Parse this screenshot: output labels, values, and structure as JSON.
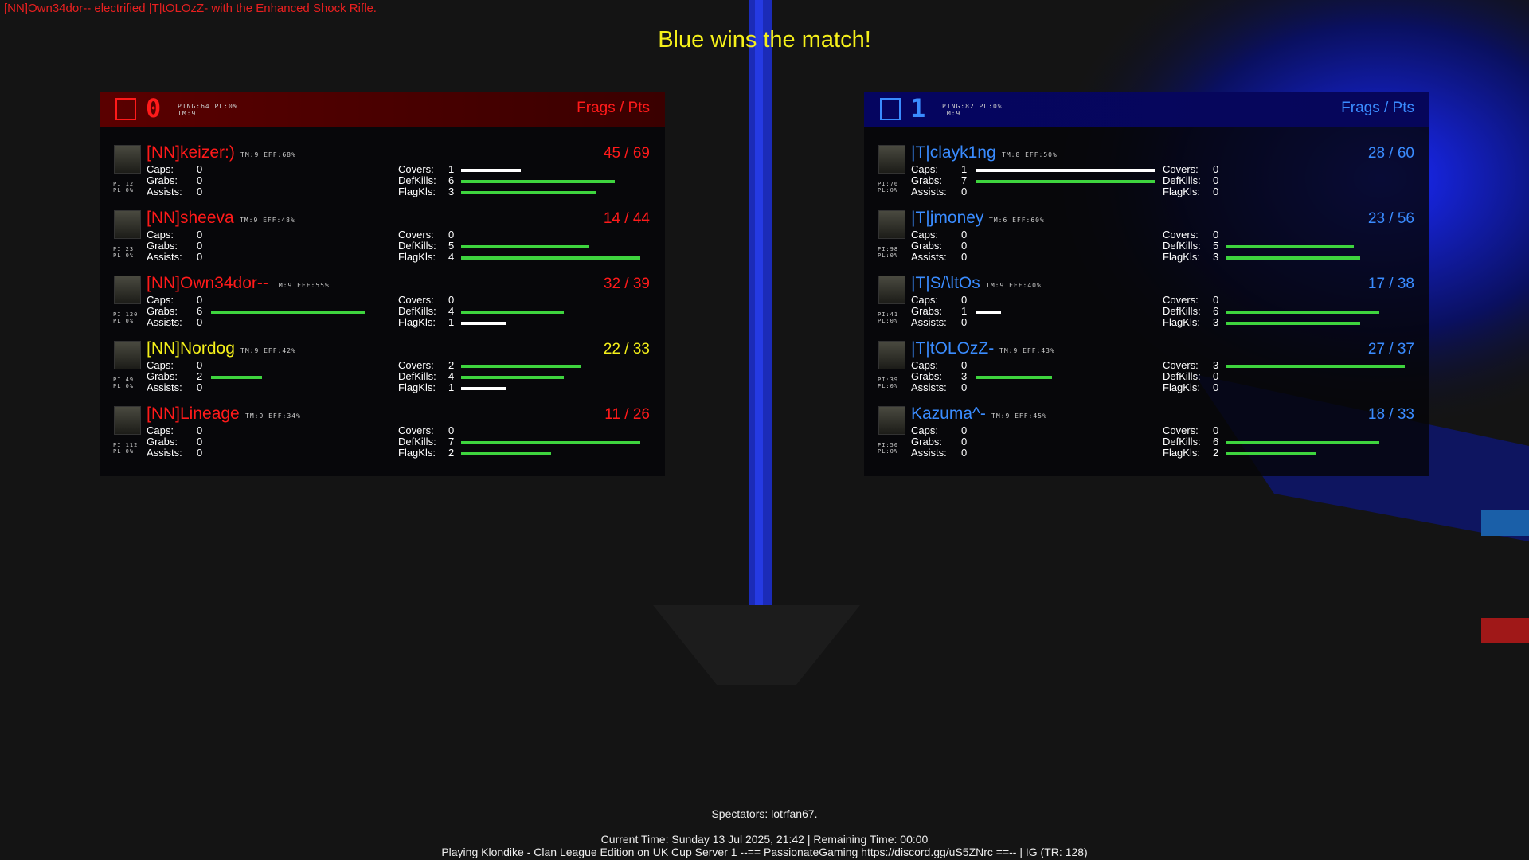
{
  "kill_message": "[NN]Own34dor-- electrified |T|tOLOzZ- with the Enhanced Shock Rifle.",
  "title": "Blue wins the match!",
  "left_labels": [
    "Caps:",
    "Grabs:",
    "Assists:"
  ],
  "right_labels": [
    "Covers:",
    "DefKills:",
    "FlagKls:"
  ],
  "teams": [
    {
      "score": "0",
      "ping": "PING:64 PL:0%",
      "tm": "TM:9",
      "header": "Frags / Pts",
      "color": "#ff1a1a",
      "players": [
        {
          "name": "[NN]keizer:)",
          "color": "#ff1a1a",
          "info": "TM:9 EFF:68%",
          "score": "45 / 69",
          "left_stats": [
            0,
            0,
            0
          ],
          "right_stats": [
            1,
            6,
            3
          ],
          "pi": "PI:12",
          "pl": "PL:0%"
        },
        {
          "name": "[NN]sheeva",
          "color": "#ff1a1a",
          "info": "TM:9 EFF:48%",
          "score": "14 / 44",
          "left_stats": [
            0,
            0,
            0
          ],
          "right_stats": [
            0,
            5,
            4
          ],
          "pi": "PI:23",
          "pl": "PL:0%"
        },
        {
          "name": "[NN]Own34dor--",
          "color": "#ff1a1a",
          "info": "TM:9 EFF:55%",
          "score": "32 / 39",
          "left_stats": [
            0,
            6,
            0
          ],
          "right_stats": [
            0,
            4,
            1
          ],
          "pi": "PI:120",
          "pl": "PL:0%"
        },
        {
          "name": "[NN]Nordog",
          "color": "#f5f01a",
          "info": "TM:9 EFF:42%",
          "score": "22 / 33",
          "left_stats": [
            0,
            2,
            0
          ],
          "right_stats": [
            2,
            4,
            1
          ],
          "pi": "PI:49",
          "pl": "PL:0%"
        },
        {
          "name": "[NN]Lineage",
          "color": "#ff1a1a",
          "info": "TM:9 EFF:34%",
          "score": "11 / 26",
          "left_stats": [
            0,
            0,
            0
          ],
          "right_stats": [
            0,
            7,
            2
          ],
          "pi": "PI:112",
          "pl": "PL:0%"
        }
      ]
    },
    {
      "score": "1",
      "ping": "PING:82 PL:0%",
      "tm": "TM:9",
      "header": "Frags / Pts",
      "color": "#3a8cff",
      "players": [
        {
          "name": "|T|clayk1ng",
          "color": "#3a8cff",
          "info": "TM:8 EFF:50%",
          "score": "28 / 60",
          "left_stats": [
            1,
            7,
            0
          ],
          "right_stats": [
            0,
            0,
            0
          ],
          "pi": "PI:76",
          "pl": "PL:0%"
        },
        {
          "name": "|T|jmoney",
          "color": "#3a8cff",
          "info": "TM:6 EFF:60%",
          "score": "23 / 56",
          "left_stats": [
            0,
            0,
            0
          ],
          "right_stats": [
            0,
            5,
            3
          ],
          "pi": "PI:98",
          "pl": "PL:0%"
        },
        {
          "name": "|T|S/\\ltOs",
          "color": "#3a8cff",
          "info": "TM:9 EFF:40%",
          "score": "17 / 38",
          "left_stats": [
            0,
            1,
            0
          ],
          "right_stats": [
            0,
            6,
            3
          ],
          "pi": "PI:41",
          "pl": "PL:0%"
        },
        {
          "name": "|T|tOLOzZ-",
          "color": "#3a8cff",
          "info": "TM:9 EFF:43%",
          "score": "27 / 37",
          "left_stats": [
            0,
            3,
            0
          ],
          "right_stats": [
            3,
            0,
            0
          ],
          "pi": "PI:39",
          "pl": "PL:0%"
        },
        {
          "name": "Kazuma^-",
          "color": "#3a8cff",
          "info": "TM:9 EFF:45%",
          "score": "18 / 33",
          "left_stats": [
            0,
            0,
            0
          ],
          "right_stats": [
            0,
            6,
            2
          ],
          "pi": "PI:50",
          "pl": "PL:0%"
        }
      ]
    }
  ],
  "spectators": "Spectators: lotrfan67.",
  "time_line": "Current Time: Sunday 13 Jul 2025, 21:42 | Remaining Time: 00:00",
  "server_line": "Playing Klondike - Clan League Edition on UK Cup Server 1 --== PassionateGaming https://discord.gg/uS5ZNrc ==-- | IG (TR: 128)"
}
